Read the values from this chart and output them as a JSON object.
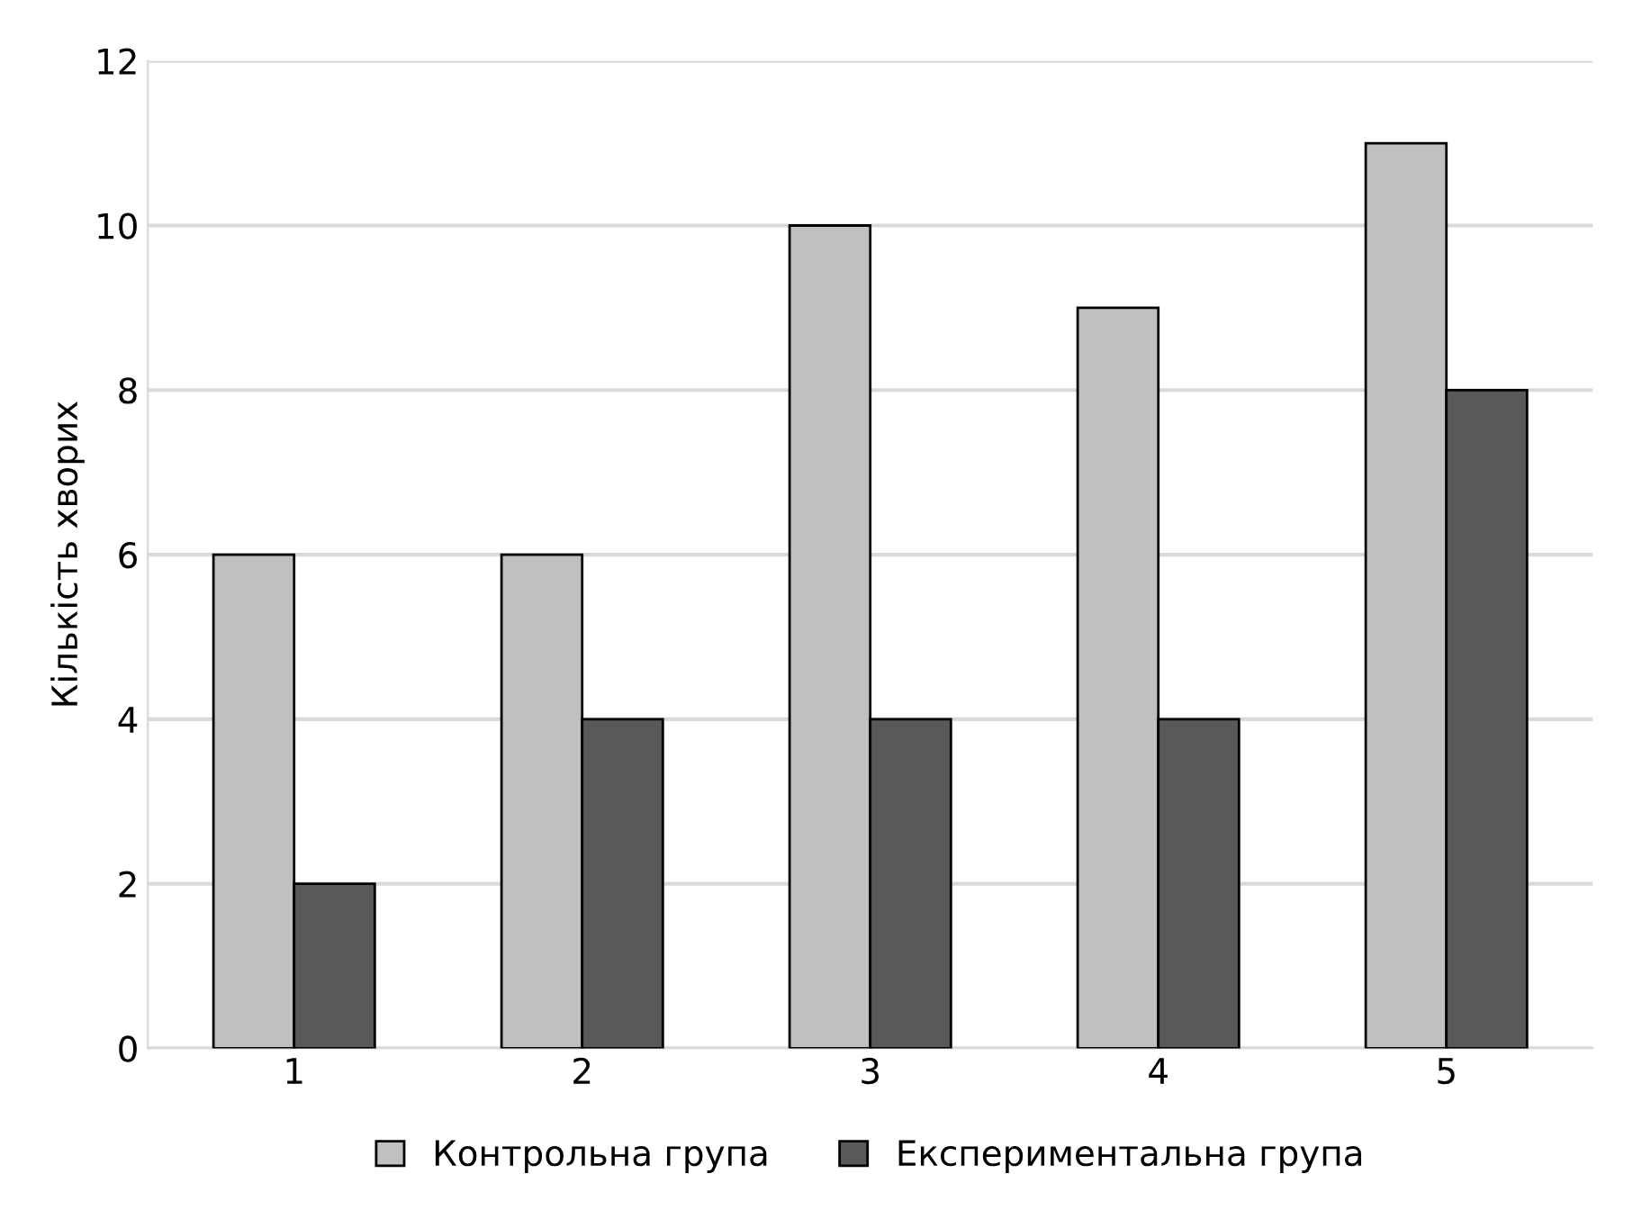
{
  "chart_data": {
    "type": "bar",
    "ylabel": "Кількість хворих",
    "categories": [
      "1",
      "2",
      "3",
      "4",
      "5"
    ],
    "series": [
      {
        "name": "Контрольна група",
        "color": "#c0c0c0",
        "values": [
          6,
          6,
          10,
          9,
          11
        ]
      },
      {
        "name": "Експериментальна група",
        "color": "#595959",
        "values": [
          2,
          4,
          4,
          4,
          8
        ]
      }
    ],
    "ylim": [
      0,
      12
    ],
    "yticks": [
      0,
      2,
      4,
      6,
      8,
      10,
      12
    ],
    "grid": "y",
    "legend": "bottom"
  }
}
